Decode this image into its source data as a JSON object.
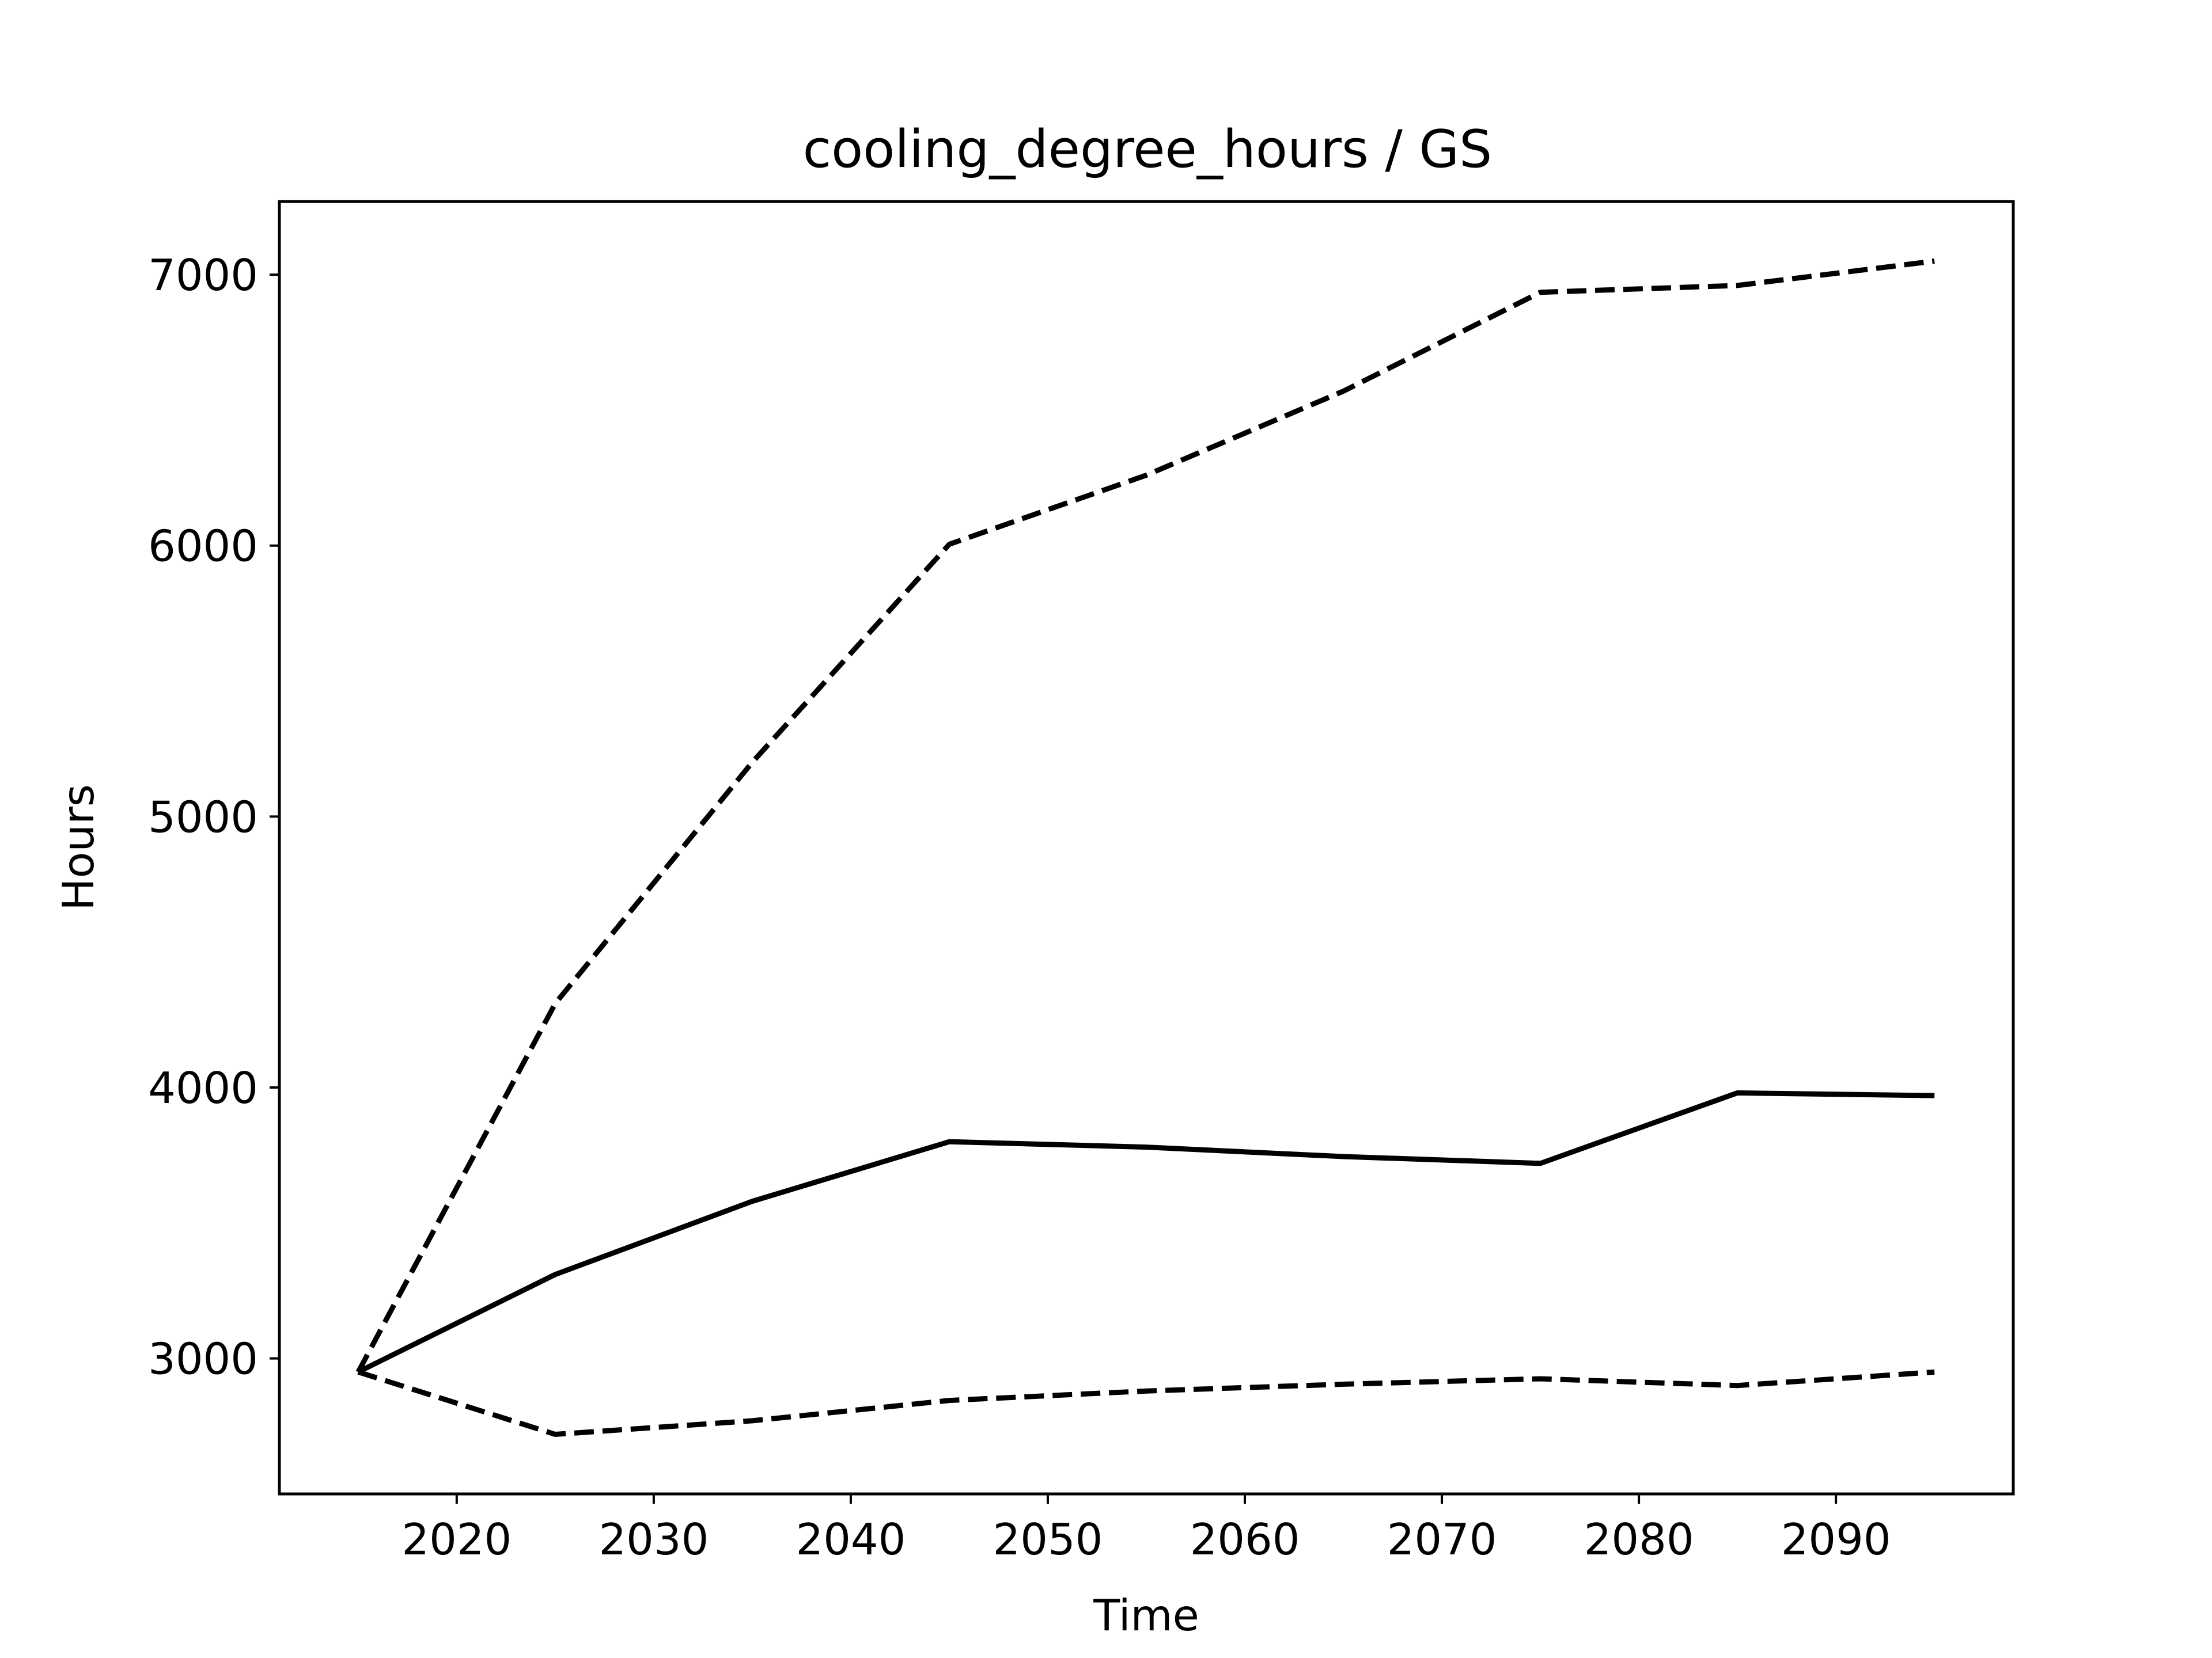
{
  "chart_data": {
    "type": "line",
    "title": "cooling_degree_hours / GS",
    "xlabel": "Time",
    "ylabel": "Hours",
    "xlim": [
      2011,
      2099
    ],
    "ylim": [
      2500,
      7270
    ],
    "xticks": [
      2020,
      2030,
      2040,
      2050,
      2060,
      2070,
      2080,
      2090
    ],
    "yticks": [
      3000,
      4000,
      5000,
      6000,
      7000
    ],
    "x": [
      2015,
      2025,
      2035,
      2045,
      2055,
      2065,
      2075,
      2085,
      2095
    ],
    "grid": false,
    "legend": "none",
    "color": "#000000",
    "series": [
      {
        "style": "solid",
        "values": [
          2950,
          3310,
          3580,
          3800,
          3780,
          3745,
          3720,
          3980,
          3970
        ]
      },
      {
        "style": "dashed",
        "values": [
          2950,
          4310,
          5200,
          6005,
          6260,
          6570,
          6935,
          6960,
          7050
        ]
      },
      {
        "style": "dashed",
        "values": [
          2950,
          2720,
          2770,
          2845,
          2880,
          2905,
          2925,
          2900,
          2950
        ]
      }
    ]
  }
}
